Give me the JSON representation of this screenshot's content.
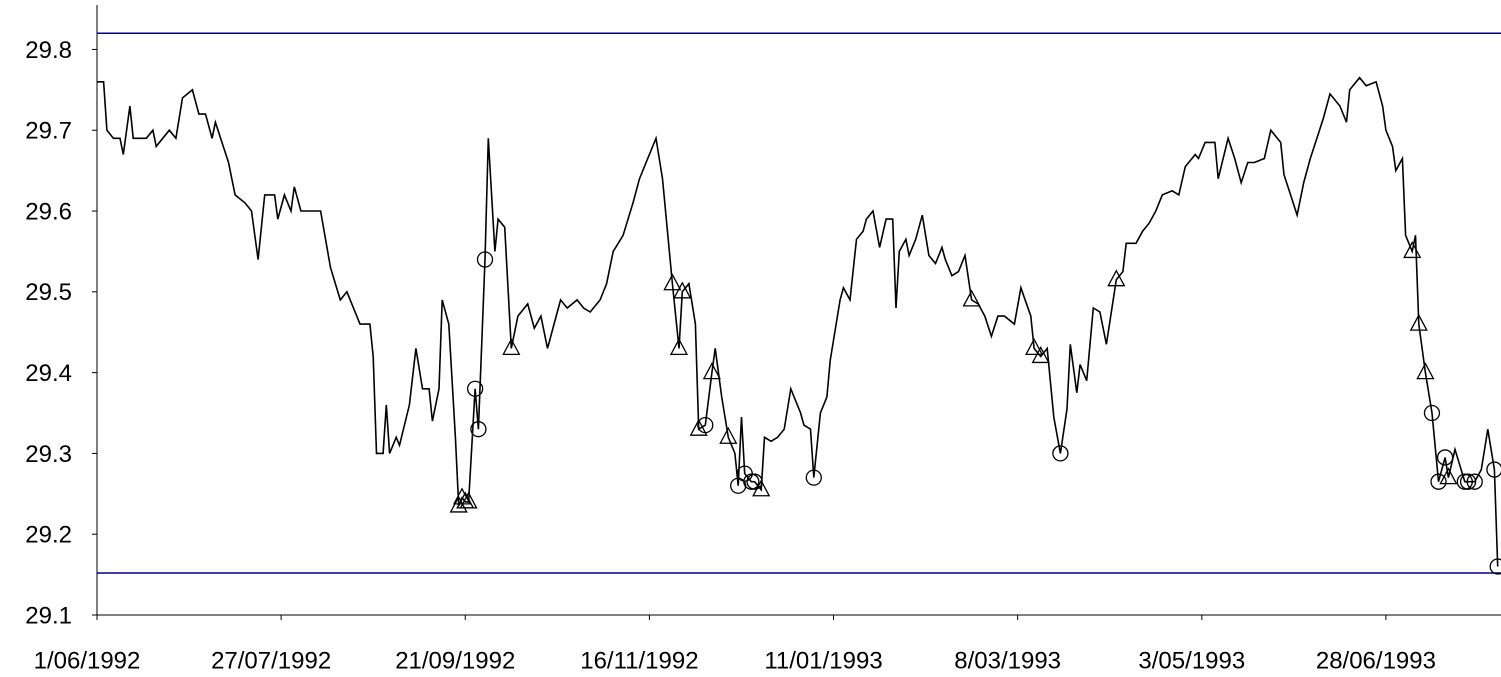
{
  "chart_data": {
    "type": "line",
    "xlim": [
      "1992-06-01",
      "1993-08-02"
    ],
    "xticks": [
      {
        "value": "1992-06-01",
        "label": "1/06/1992"
      },
      {
        "value": "1992-07-27",
        "label": "27/07/1992"
      },
      {
        "value": "1992-09-21",
        "label": "21/09/1992"
      },
      {
        "value": "1992-11-16",
        "label": "16/11/1992"
      },
      {
        "value": "1993-01-11",
        "label": "11/01/1993"
      },
      {
        "value": "1993-03-08",
        "label": "8/03/1993"
      },
      {
        "value": "1993-05-03",
        "label": "3/05/1993"
      },
      {
        "value": "1993-06-28",
        "label": "28/06/1993"
      }
    ],
    "ylim": [
      29.1,
      29.855
    ],
    "yticks": [
      29.1,
      29.2,
      29.3,
      29.4,
      29.5,
      29.6,
      29.7,
      29.8
    ],
    "hlines": [
      {
        "value": 29.82,
        "color": "#000080"
      },
      {
        "value": 29.152,
        "color": "#000080"
      }
    ],
    "series": [
      {
        "color": "#000000",
        "marker": "none",
        "x": [
          "1992-06-01",
          "1992-06-03",
          "1992-06-04",
          "1992-06-06",
          "1992-06-08",
          "1992-06-09",
          "1992-06-11",
          "1992-06-12",
          "1992-06-16",
          "1992-06-18",
          "1992-06-19",
          "1992-06-23",
          "1992-06-25",
          "1992-06-27",
          "1992-06-30",
          "1992-07-02",
          "1992-07-04",
          "1992-07-06",
          "1992-07-07",
          "1992-07-11",
          "1992-07-13",
          "1992-07-16",
          "1992-07-18",
          "1992-07-20",
          "1992-07-22",
          "1992-07-25",
          "1992-07-26",
          "1992-07-28",
          "1992-07-30",
          "1992-07-31",
          "1992-08-02",
          "1992-08-05",
          "1992-08-08",
          "1992-08-11",
          "1992-08-14",
          "1992-08-16",
          "1992-08-20",
          "1992-08-23",
          "1992-08-24",
          "1992-08-25",
          "1992-08-27",
          "1992-08-28",
          "1992-08-29",
          "1992-08-31",
          "1992-09-01",
          "1992-09-04",
          "1992-09-06",
          "1992-09-08",
          "1992-09-10",
          "1992-09-11",
          "1992-09-13",
          "1992-09-14",
          "1992-09-16",
          "1992-09-18",
          "1992-09-19",
          "1992-09-20",
          "1992-09-21",
          "1992-09-22",
          "1992-09-24",
          "1992-09-25",
          "1992-09-27",
          "1992-09-28",
          "1992-09-30",
          "1992-10-01",
          "1992-10-03",
          "1992-10-05",
          "1992-10-07",
          "1992-10-10",
          "1992-10-12",
          "1992-10-14",
          "1992-10-16",
          "1992-10-19",
          "1992-10-20",
          "1992-10-22",
          "1992-10-25",
          "1992-10-27",
          "1992-10-29",
          "1992-11-01",
          "1992-11-03",
          "1992-11-05",
          "1992-11-08",
          "1992-11-11",
          "1992-11-13",
          "1992-11-15",
          "1992-11-18",
          "1992-11-20",
          "1992-11-23",
          "1992-11-25",
          "1992-11-26",
          "1992-11-28",
          "1992-11-30",
          "1992-12-01",
          "1992-12-03",
          "1992-12-05",
          "1992-12-06",
          "1992-12-08",
          "1992-12-10",
          "1992-12-12",
          "1992-12-13",
          "1992-12-14",
          "1992-12-15",
          "1992-12-17",
          "1992-12-18",
          "1992-12-20",
          "1992-12-21",
          "1992-12-23",
          "1992-12-25",
          "1992-12-27",
          "1992-12-29",
          "1993-01-01",
          "1993-01-02",
          "1993-01-04",
          "1993-01-05",
          "1993-01-07",
          "1993-01-09",
          "1993-01-10",
          "1993-01-13",
          "1993-01-14",
          "1993-01-16",
          "1993-01-18",
          "1993-01-20",
          "1993-01-21",
          "1993-01-23",
          "1993-01-25",
          "1993-01-27",
          "1993-01-29",
          "1993-01-30",
          "1993-01-31",
          "1993-02-02",
          "1993-02-03",
          "1993-02-05",
          "1993-02-07",
          "1993-02-09",
          "1993-02-11",
          "1993-02-13",
          "1993-02-14",
          "1993-02-16",
          "1993-02-18",
          "1993-02-20",
          "1993-02-22",
          "1993-02-24",
          "1993-02-26",
          "1993-02-28",
          "1993-03-02",
          "1993-03-04",
          "1993-03-07",
          "1993-03-09",
          "1993-03-12",
          "1993-03-13",
          "1993-03-15",
          "1993-03-17",
          "1993-03-19",
          "1993-03-21",
          "1993-03-23",
          "1993-03-24",
          "1993-03-26",
          "1993-03-27",
          "1993-03-29",
          "1993-03-31",
          "1993-04-02",
          "1993-04-04",
          "1993-04-07",
          "1993-04-09",
          "1993-04-10",
          "1993-04-13",
          "1993-04-15",
          "1993-04-17",
          "1993-04-19",
          "1993-04-21",
          "1993-04-24",
          "1993-04-26",
          "1993-04-28",
          "1993-05-01",
          "1993-05-02",
          "1993-05-04",
          "1993-05-07",
          "1993-05-08",
          "1993-05-11",
          "1993-05-13",
          "1993-05-15",
          "1993-05-17",
          "1993-05-19",
          "1993-05-22",
          "1993-05-24",
          "1993-05-27",
          "1993-05-28",
          "1993-05-30",
          "1993-06-01",
          "1993-06-03",
          "1993-06-05",
          "1993-06-07",
          "1993-06-09",
          "1993-06-11",
          "1993-06-14",
          "1993-06-16",
          "1993-06-17",
          "1993-06-20",
          "1993-06-22",
          "1993-06-25",
          "1993-06-27",
          "1993-06-28",
          "1993-06-30",
          "1993-07-01",
          "1993-07-03",
          "1993-07-04",
          "1993-07-06",
          "1993-07-07",
          "1993-07-08",
          "1993-07-10",
          "1993-07-12",
          "1993-07-14",
          "1993-07-16",
          "1993-07-17",
          "1993-07-19",
          "1993-07-22",
          "1993-07-23",
          "1993-07-25",
          "1993-07-27",
          "1993-07-29",
          "1993-07-31",
          "1993-08-01"
        ],
        "values": [
          29.76,
          29.76,
          29.7,
          29.69,
          29.69,
          29.67,
          29.73,
          29.69,
          29.69,
          29.7,
          29.68,
          29.7,
          29.69,
          29.74,
          29.75,
          29.72,
          29.72,
          29.69,
          29.71,
          29.66,
          29.62,
          29.61,
          29.6,
          29.54,
          29.62,
          29.62,
          29.59,
          29.62,
          29.6,
          29.63,
          29.6,
          29.6,
          29.6,
          29.53,
          29.49,
          29.5,
          29.46,
          29.46,
          29.42,
          29.3,
          29.3,
          29.36,
          29.3,
          29.32,
          29.31,
          29.36,
          29.43,
          29.38,
          29.38,
          29.34,
          29.38,
          29.49,
          29.46,
          29.32,
          29.235,
          29.245,
          29.24,
          29.24,
          29.38,
          29.33,
          29.54,
          29.69,
          29.55,
          29.59,
          29.58,
          29.43,
          29.47,
          29.485,
          29.455,
          29.47,
          29.43,
          29.475,
          29.49,
          29.48,
          29.49,
          29.48,
          29.475,
          29.49,
          29.51,
          29.55,
          29.57,
          29.61,
          29.64,
          29.66,
          29.69,
          29.64,
          29.51,
          29.43,
          29.5,
          29.51,
          29.46,
          29.33,
          29.335,
          29.4,
          29.43,
          29.37,
          29.32,
          29.3,
          29.26,
          29.345,
          29.275,
          29.265,
          29.265,
          29.255,
          29.32,
          29.315,
          29.32,
          29.33,
          29.38,
          29.35,
          29.335,
          29.33,
          29.27,
          29.35,
          29.37,
          29.415,
          29.49,
          29.505,
          29.49,
          29.565,
          29.575,
          29.59,
          29.6,
          29.555,
          29.59,
          29.59,
          29.48,
          29.55,
          29.565,
          29.545,
          29.565,
          29.595,
          29.545,
          29.535,
          29.555,
          29.54,
          29.52,
          29.525,
          29.545,
          29.49,
          29.485,
          29.47,
          29.445,
          29.47,
          29.47,
          29.46,
          29.505,
          29.47,
          29.43,
          29.42,
          29.43,
          29.345,
          29.3,
          29.355,
          29.435,
          29.375,
          29.41,
          29.39,
          29.48,
          29.475,
          29.435,
          29.515,
          29.525,
          29.56,
          29.56,
          29.575,
          29.585,
          29.6,
          29.62,
          29.625,
          29.62,
          29.655,
          29.67,
          29.665,
          29.685,
          29.685,
          29.64,
          29.69,
          29.665,
          29.635,
          29.66,
          29.66,
          29.665,
          29.7,
          29.685,
          29.645,
          29.62,
          29.595,
          29.635,
          29.665,
          29.69,
          29.715,
          29.745,
          29.73,
          29.71,
          29.75,
          29.765,
          29.755,
          29.76,
          29.73,
          29.7,
          29.68,
          29.65,
          29.665,
          29.57,
          29.55,
          29.57,
          29.46,
          29.4,
          29.35,
          29.265,
          29.295,
          29.27,
          29.305,
          29.265,
          29.265,
          29.265,
          29.28,
          29.33,
          29.28,
          29.16
        ]
      },
      {
        "color": "#000000",
        "marker": "triangle",
        "x": [
          "1992-09-19",
          "1992-09-20",
          "1992-09-21",
          "1992-09-22",
          "1992-10-05",
          "1992-11-23",
          "1992-11-25",
          "1992-11-26",
          "1992-12-01",
          "1992-12-05",
          "1992-12-10",
          "1992-12-20",
          "1993-02-22",
          "1993-03-13",
          "1993-03-15",
          "1993-04-07",
          "1993-07-06",
          "1993-07-08",
          "1993-07-10",
          "1993-07-17"
        ],
        "values": [
          29.235,
          29.245,
          29.24,
          29.24,
          29.43,
          29.51,
          29.43,
          29.5,
          29.33,
          29.4,
          29.32,
          29.255,
          29.49,
          29.43,
          29.42,
          29.515,
          29.55,
          29.46,
          29.4,
          29.27
        ]
      },
      {
        "color": "#000000",
        "marker": "circle",
        "x": [
          "1992-09-24",
          "1992-09-25",
          "1992-09-27",
          "1992-12-03",
          "1992-12-13",
          "1992-12-15",
          "1992-12-17",
          "1992-12-18",
          "1993-01-05",
          "1993-03-21",
          "1993-07-12",
          "1993-07-14",
          "1993-07-16",
          "1993-07-22",
          "1993-07-23",
          "1993-07-25",
          "1993-07-31",
          "1993-08-01"
        ],
        "values": [
          29.38,
          29.33,
          29.54,
          29.335,
          29.26,
          29.275,
          29.265,
          29.265,
          29.27,
          29.3,
          29.35,
          29.265,
          29.295,
          29.265,
          29.265,
          29.265,
          29.28,
          29.16
        ]
      }
    ]
  }
}
